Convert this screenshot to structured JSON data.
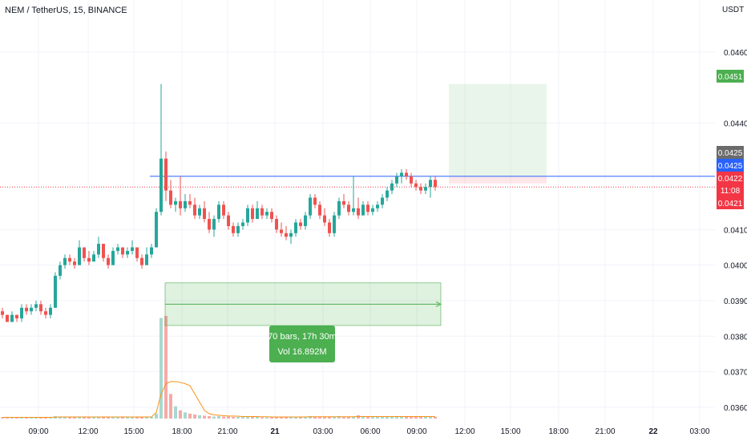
{
  "header": {
    "symbol_title": "NEM / TetherUS, 15, BINANCE",
    "currency": "USDT"
  },
  "chart_data": {
    "type": "candlestick",
    "title": "NEM / TetherUS, 15, BINANCE",
    "y_unit": "USDT",
    "ylim": [
      0.0355,
      0.0469
    ],
    "y_ticks": [
      "0.0460",
      "0.0440",
      "0.0410",
      "0.0400",
      "0.0390",
      "0.0380",
      "0.0370",
      "0.0360"
    ],
    "x_ticks": [
      "09:00",
      "12:00",
      "15:00",
      "18:00",
      "21:00",
      "21",
      "03:00",
      "06:00",
      "09:00",
      "12:00",
      "15:00",
      "18:00",
      "21:00",
      "22",
      "03:00"
    ],
    "price_labels": [
      {
        "text": "0.0451",
        "color": "#4caf50"
      },
      {
        "text": "0.0425",
        "color": "#6b6b6b"
      },
      {
        "text": "0.0425",
        "color": "#2962ff"
      },
      {
        "text": "0.0422",
        "color": "#f23645"
      },
      {
        "text": "11:08",
        "color": "#f23645"
      },
      {
        "text": "0.0421",
        "color": "#f23645"
      }
    ],
    "horizontal_line": 0.0425,
    "position": {
      "entry": 0.0425,
      "target": 0.0451,
      "stop": 0.0423
    },
    "range_tool": {
      "price_low": 0.0383,
      "price_high": 0.0395,
      "line_price": 0.0389,
      "bars_text": "70 bars, 17h 30m",
      "vol_text": "Vol 16.892M"
    },
    "candles": [
      [
        0.0387,
        0.0388,
        0.0385,
        0.0386
      ],
      [
        0.0386,
        0.0386,
        0.0384,
        0.0384
      ],
      [
        0.0384,
        0.0387,
        0.0384,
        0.0386
      ],
      [
        0.0386,
        0.0386,
        0.0384,
        0.0385
      ],
      [
        0.0385,
        0.0389,
        0.0384,
        0.0388
      ],
      [
        0.0388,
        0.0389,
        0.0386,
        0.0387
      ],
      [
        0.0387,
        0.0389,
        0.0386,
        0.0388
      ],
      [
        0.0388,
        0.039,
        0.0387,
        0.0389
      ],
      [
        0.0389,
        0.039,
        0.0386,
        0.0387
      ],
      [
        0.0387,
        0.0388,
        0.0385,
        0.0386
      ],
      [
        0.0386,
        0.0389,
        0.0385,
        0.0388
      ],
      [
        0.0388,
        0.0398,
        0.0388,
        0.0397
      ],
      [
        0.0397,
        0.0401,
        0.0396,
        0.04
      ],
      [
        0.04,
        0.0403,
        0.0399,
        0.0402
      ],
      [
        0.0402,
        0.0403,
        0.04,
        0.0401
      ],
      [
        0.0401,
        0.0402,
        0.0399,
        0.04
      ],
      [
        0.04,
        0.0407,
        0.04,
        0.0405
      ],
      [
        0.0405,
        0.0405,
        0.0401,
        0.0402
      ],
      [
        0.0402,
        0.0404,
        0.04,
        0.0401
      ],
      [
        0.0401,
        0.0404,
        0.0401,
        0.0403
      ],
      [
        0.0403,
        0.0408,
        0.0402,
        0.0406
      ],
      [
        0.0406,
        0.0406,
        0.0401,
        0.0402
      ],
      [
        0.0402,
        0.0403,
        0.0399,
        0.04
      ],
      [
        0.04,
        0.0405,
        0.04,
        0.0404
      ],
      [
        0.0404,
        0.0406,
        0.0403,
        0.0405
      ],
      [
        0.0405,
        0.0405,
        0.0402,
        0.0403
      ],
      [
        0.0403,
        0.0405,
        0.0402,
        0.0404
      ],
      [
        0.0404,
        0.0407,
        0.0403,
        0.0405
      ],
      [
        0.0405,
        0.0405,
        0.0401,
        0.0402
      ],
      [
        0.0402,
        0.0403,
        0.0399,
        0.04
      ],
      [
        0.04,
        0.0405,
        0.04,
        0.0403
      ],
      [
        0.0403,
        0.0406,
        0.0402,
        0.0405
      ],
      [
        0.0405,
        0.0416,
        0.0405,
        0.0415
      ],
      [
        0.0415,
        0.0451,
        0.0414,
        0.043
      ],
      [
        0.043,
        0.0432,
        0.0418,
        0.0421
      ],
      [
        0.0421,
        0.0424,
        0.0416,
        0.0417
      ],
      [
        0.0417,
        0.0419,
        0.0415,
        0.0418
      ],
      [
        0.0418,
        0.0425,
        0.0414,
        0.0416
      ],
      [
        0.0416,
        0.042,
        0.0415,
        0.0418
      ],
      [
        0.0418,
        0.042,
        0.0416,
        0.0417
      ],
      [
        0.0417,
        0.0419,
        0.0413,
        0.0414
      ],
      [
        0.0414,
        0.0417,
        0.0413,
        0.0416
      ],
      [
        0.0416,
        0.0418,
        0.0412,
        0.0413
      ],
      [
        0.0413,
        0.0415,
        0.0409,
        0.041
      ],
      [
        0.041,
        0.0414,
        0.0408,
        0.0413
      ],
      [
        0.0413,
        0.0418,
        0.0412,
        0.0417
      ],
      [
        0.0417,
        0.0418,
        0.0413,
        0.0414
      ],
      [
        0.0414,
        0.0415,
        0.041,
        0.0411
      ],
      [
        0.0411,
        0.0412,
        0.0408,
        0.0409
      ],
      [
        0.0409,
        0.0412,
        0.0408,
        0.0411
      ],
      [
        0.0411,
        0.0413,
        0.041,
        0.0412
      ],
      [
        0.0412,
        0.0417,
        0.0411,
        0.0416
      ],
      [
        0.0416,
        0.0417,
        0.0412,
        0.0413
      ],
      [
        0.0413,
        0.0418,
        0.0413,
        0.0416
      ],
      [
        0.0416,
        0.0417,
        0.0413,
        0.0414
      ],
      [
        0.0414,
        0.0416,
        0.0413,
        0.0415
      ],
      [
        0.0415,
        0.0416,
        0.0412,
        0.0413
      ],
      [
        0.0413,
        0.0414,
        0.0409,
        0.041
      ],
      [
        0.041,
        0.0412,
        0.0408,
        0.0409
      ],
      [
        0.0409,
        0.0411,
        0.0407,
        0.0408
      ],
      [
        0.0408,
        0.041,
        0.0406,
        0.0409
      ],
      [
        0.0409,
        0.0413,
        0.0408,
        0.0412
      ],
      [
        0.0412,
        0.0413,
        0.041,
        0.0411
      ],
      [
        0.0411,
        0.0415,
        0.041,
        0.0414
      ],
      [
        0.0414,
        0.042,
        0.0413,
        0.0419
      ],
      [
        0.0419,
        0.042,
        0.0416,
        0.0417
      ],
      [
        0.0417,
        0.0418,
        0.0413,
        0.0414
      ],
      [
        0.0414,
        0.0416,
        0.0411,
        0.0412
      ],
      [
        0.0412,
        0.0413,
        0.0408,
        0.0409
      ],
      [
        0.0409,
        0.0415,
        0.0408,
        0.0414
      ],
      [
        0.0414,
        0.0419,
        0.0413,
        0.0418
      ],
      [
        0.0418,
        0.042,
        0.0416,
        0.0417
      ],
      [
        0.0417,
        0.0418,
        0.0414,
        0.0415
      ],
      [
        0.0415,
        0.0425,
        0.0414,
        0.0416
      ],
      [
        0.0416,
        0.0419,
        0.0413,
        0.0414
      ],
      [
        0.0414,
        0.0418,
        0.0414,
        0.0417
      ],
      [
        0.0417,
        0.0418,
        0.0414,
        0.0415
      ],
      [
        0.0415,
        0.0417,
        0.0414,
        0.0416
      ],
      [
        0.0416,
        0.0418,
        0.0415,
        0.0417
      ],
      [
        0.0417,
        0.042,
        0.0416,
        0.0419
      ],
      [
        0.0419,
        0.0422,
        0.0418,
        0.0421
      ],
      [
        0.0421,
        0.0424,
        0.042,
        0.0423
      ],
      [
        0.0423,
        0.0426,
        0.0422,
        0.0425
      ],
      [
        0.0425,
        0.0427,
        0.0423,
        0.0426
      ],
      [
        0.0426,
        0.0427,
        0.0424,
        0.0425
      ],
      [
        0.0425,
        0.0426,
        0.0422,
        0.0423
      ],
      [
        0.0423,
        0.0424,
        0.0421,
        0.0422
      ],
      [
        0.0422,
        0.0423,
        0.042,
        0.0421
      ],
      [
        0.0421,
        0.0423,
        0.042,
        0.0422
      ],
      [
        0.0422,
        0.0425,
        0.0419,
        0.0424
      ],
      [
        0.0424,
        0.0425,
        0.0421,
        0.0422
      ]
    ],
    "volume_max": 25.0,
    "volume": [
      0.3,
      0.3,
      0.4,
      0.3,
      0.3,
      0.3,
      0.2,
      0.3,
      0.3,
      0.4,
      0.3,
      0.6,
      0.5,
      0.5,
      0.4,
      0.3,
      0.5,
      0.4,
      0.3,
      0.3,
      0.5,
      0.4,
      0.4,
      0.3,
      0.3,
      0.3,
      0.3,
      0.3,
      0.3,
      0.4,
      0.3,
      0.4,
      1.2,
      24.5,
      25,
      6,
      3,
      2,
      1.5,
      1.2,
      1,
      0.8,
      0.7,
      0.6,
      0.5,
      0.6,
      0.5,
      0.5,
      0.4,
      0.4,
      0.4,
      0.5,
      0.4,
      0.4,
      0.3,
      0.3,
      0.3,
      0.4,
      0.4,
      0.3,
      0.3,
      0.4,
      0.3,
      0.4,
      0.6,
      0.5,
      0.4,
      0.4,
      0.5,
      0.4,
      0.6,
      0.4,
      0.4,
      0.5,
      0.8,
      0.4,
      0.5,
      0.4,
      0.5,
      0.4,
      0.5,
      0.5,
      0.6,
      0.6,
      0.5,
      0.5,
      0.4,
      0.4,
      0.4,
      0.6,
      0.4
    ],
    "volume_ma": [
      0.3,
      0.3,
      0.3,
      0.3,
      0.3,
      0.3,
      0.3,
      0.3,
      0.3,
      0.3,
      0.3,
      0.35,
      0.4,
      0.4,
      0.4,
      0.4,
      0.4,
      0.4,
      0.4,
      0.4,
      0.4,
      0.4,
      0.4,
      0.4,
      0.4,
      0.4,
      0.4,
      0.4,
      0.4,
      0.4,
      0.4,
      0.4,
      1.5,
      6,
      8.5,
      9,
      9,
      8.8,
      8.5,
      8,
      6,
      4,
      2,
      1.2,
      0.9,
      0.8,
      0.7,
      0.6,
      0.6,
      0.55,
      0.5,
      0.5,
      0.5,
      0.5,
      0.45,
      0.45,
      0.4,
      0.4,
      0.4,
      0.4,
      0.4,
      0.4,
      0.4,
      0.4,
      0.45,
      0.45,
      0.45,
      0.45,
      0.45,
      0.45,
      0.45,
      0.45,
      0.45,
      0.45,
      0.5,
      0.5,
      0.5,
      0.5,
      0.5,
      0.5,
      0.5,
      0.5,
      0.5,
      0.5,
      0.5,
      0.5,
      0.5,
      0.5,
      0.5,
      0.5,
      0.5
    ]
  },
  "colors": {
    "up": "#26a69a",
    "down": "#ef5350",
    "volume_up": "#a8d8cf",
    "volume_down": "#f7a9a7",
    "volume_ma": "#f7931a"
  }
}
